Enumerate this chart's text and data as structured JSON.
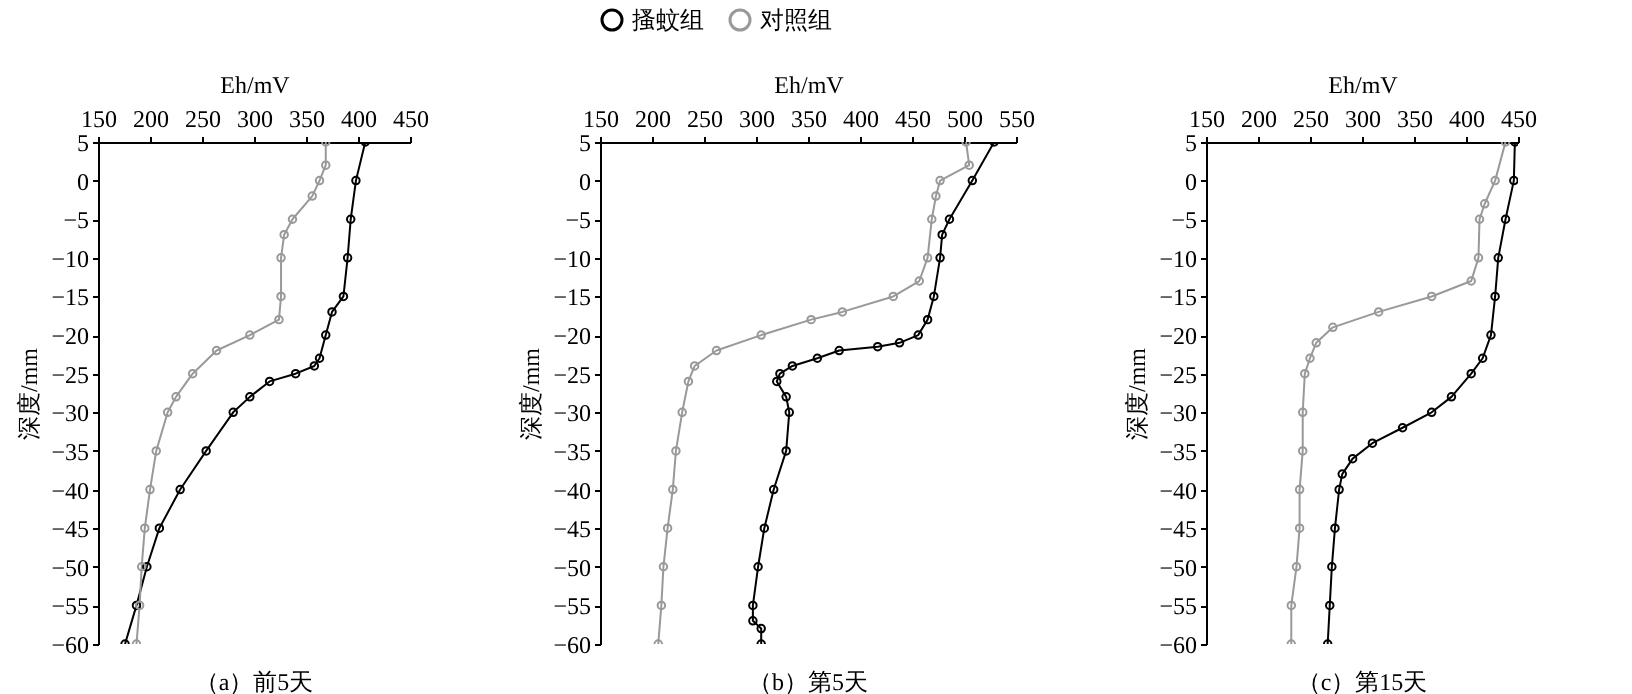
{
  "chart_data": [
    {
      "type": "line",
      "xlabel": "Eh/mV",
      "ylabel": "深度/mm",
      "annotations": [
        "（a）前5天"
      ],
      "xlim": [
        150,
        450
      ],
      "xticks": [
        150,
        200,
        250,
        300,
        350,
        400,
        450
      ],
      "ylim": [
        -60,
        5
      ],
      "yticks": [
        5,
        0,
        -5,
        -10,
        -15,
        -20,
        -25,
        -30,
        -35,
        -40,
        -45,
        -50,
        -55,
        -60
      ],
      "marker": "circle",
      "legend": false,
      "series": [
        {
          "color": "#000000",
          "x": [
            407,
            398,
            393,
            390,
            386,
            375,
            369,
            363,
            358,
            340,
            315,
            296,
            280,
            254,
            229,
            209,
            197,
            187,
            176
          ],
          "values": [
            5,
            0,
            -5,
            -10,
            -15,
            -17,
            -20,
            -23,
            -24,
            -25,
            -26,
            -28,
            -30,
            -35,
            -40,
            -45,
            -50,
            -55,
            -60
          ]
        },
        {
          "color": "#999999",
          "x": [
            369,
            369,
            363,
            356,
            337,
            329,
            326,
            326,
            324,
            296,
            264,
            241,
            225,
            217,
            206,
            200,
            195,
            192,
            190,
            187
          ],
          "values": [
            5,
            2,
            0,
            -2,
            -5,
            -7,
            -10,
            -15,
            -18,
            -20,
            -22,
            -25,
            -28,
            -30,
            -35,
            -40,
            -45,
            -50,
            -55,
            -60
          ]
        }
      ]
    },
    {
      "type": "line",
      "xlabel": "Eh/mV",
      "ylabel": "深度/mm",
      "annotations": [
        "（b）第5天"
      ],
      "xlim": [
        150,
        550
      ],
      "xticks": [
        150,
        200,
        250,
        300,
        350,
        400,
        450,
        500,
        550
      ],
      "ylim": [
        -60,
        5
      ],
      "yticks": [
        5,
        0,
        -5,
        -10,
        -15,
        -20,
        -25,
        -30,
        -35,
        -40,
        -45,
        -50,
        -55,
        -60
      ],
      "marker": "circle",
      "legend": "top",
      "series": [
        {
          "name": "搔蚊组",
          "color": "#000000",
          "x": [
            529,
            508,
            486,
            479,
            477,
            471,
            465,
            456,
            438,
            417,
            380,
            359,
            335,
            323,
            320,
            329,
            332,
            329,
            317,
            308,
            302,
            297,
            297,
            305,
            305
          ],
          "values": [
            5,
            0,
            -5,
            -7,
            -10,
            -15,
            -18,
            -20,
            -21,
            -21.5,
            -22,
            -23,
            -24,
            -25,
            -26,
            -28,
            -30,
            -35,
            -40,
            -45,
            -50,
            -55,
            -57,
            -58,
            -60
          ]
        },
        {
          "name": "对照组",
          "color": "#999999",
          "x": [
            502,
            505,
            477,
            473,
            469,
            465,
            457,
            432,
            383,
            353,
            305,
            262,
            241,
            235,
            229,
            223,
            220,
            215,
            211,
            209,
            206
          ],
          "values": [
            5,
            2,
            0,
            -2,
            -5,
            -10,
            -13,
            -15,
            -17,
            -18,
            -20,
            -22,
            -24,
            -26,
            -30,
            -35,
            -40,
            -45,
            -50,
            -55,
            -60
          ]
        }
      ]
    },
    {
      "type": "line",
      "xlabel": "Eh/mV",
      "ylabel": "深度/mm",
      "annotations": [
        "（c）第15天"
      ],
      "xlim": [
        150,
        450
      ],
      "xticks": [
        150,
        200,
        250,
        300,
        350,
        400,
        450
      ],
      "ylim": [
        -60,
        5
      ],
      "yticks": [
        5,
        0,
        -5,
        -10,
        -15,
        -20,
        -25,
        -30,
        -35,
        -40,
        -45,
        -50,
        -55,
        -60
      ],
      "marker": "circle",
      "legend": false,
      "series": [
        {
          "color": "#000000",
          "x": [
            447,
            446,
            438,
            431,
            428,
            424,
            416,
            405,
            386,
            367,
            339,
            310,
            291,
            281,
            278,
            274,
            271,
            269,
            267
          ],
          "values": [
            5,
            0,
            -5,
            -10,
            -15,
            -20,
            -23,
            -25,
            -28,
            -30,
            -32,
            -34,
            -36,
            -38,
            -40,
            -45,
            -50,
            -55,
            -60
          ]
        },
        {
          "color": "#999999",
          "x": [
            438,
            428,
            418,
            413,
            412,
            405,
            367,
            316,
            272,
            256,
            250,
            245,
            243,
            243,
            240,
            240,
            237,
            232,
            232
          ],
          "values": [
            5,
            0,
            -3,
            -5,
            -10,
            -13,
            -15,
            -17,
            -19,
            -21,
            -23,
            -25,
            -30,
            -35,
            -40,
            -45,
            -50,
            -55,
            -60
          ]
        }
      ]
    }
  ]
}
